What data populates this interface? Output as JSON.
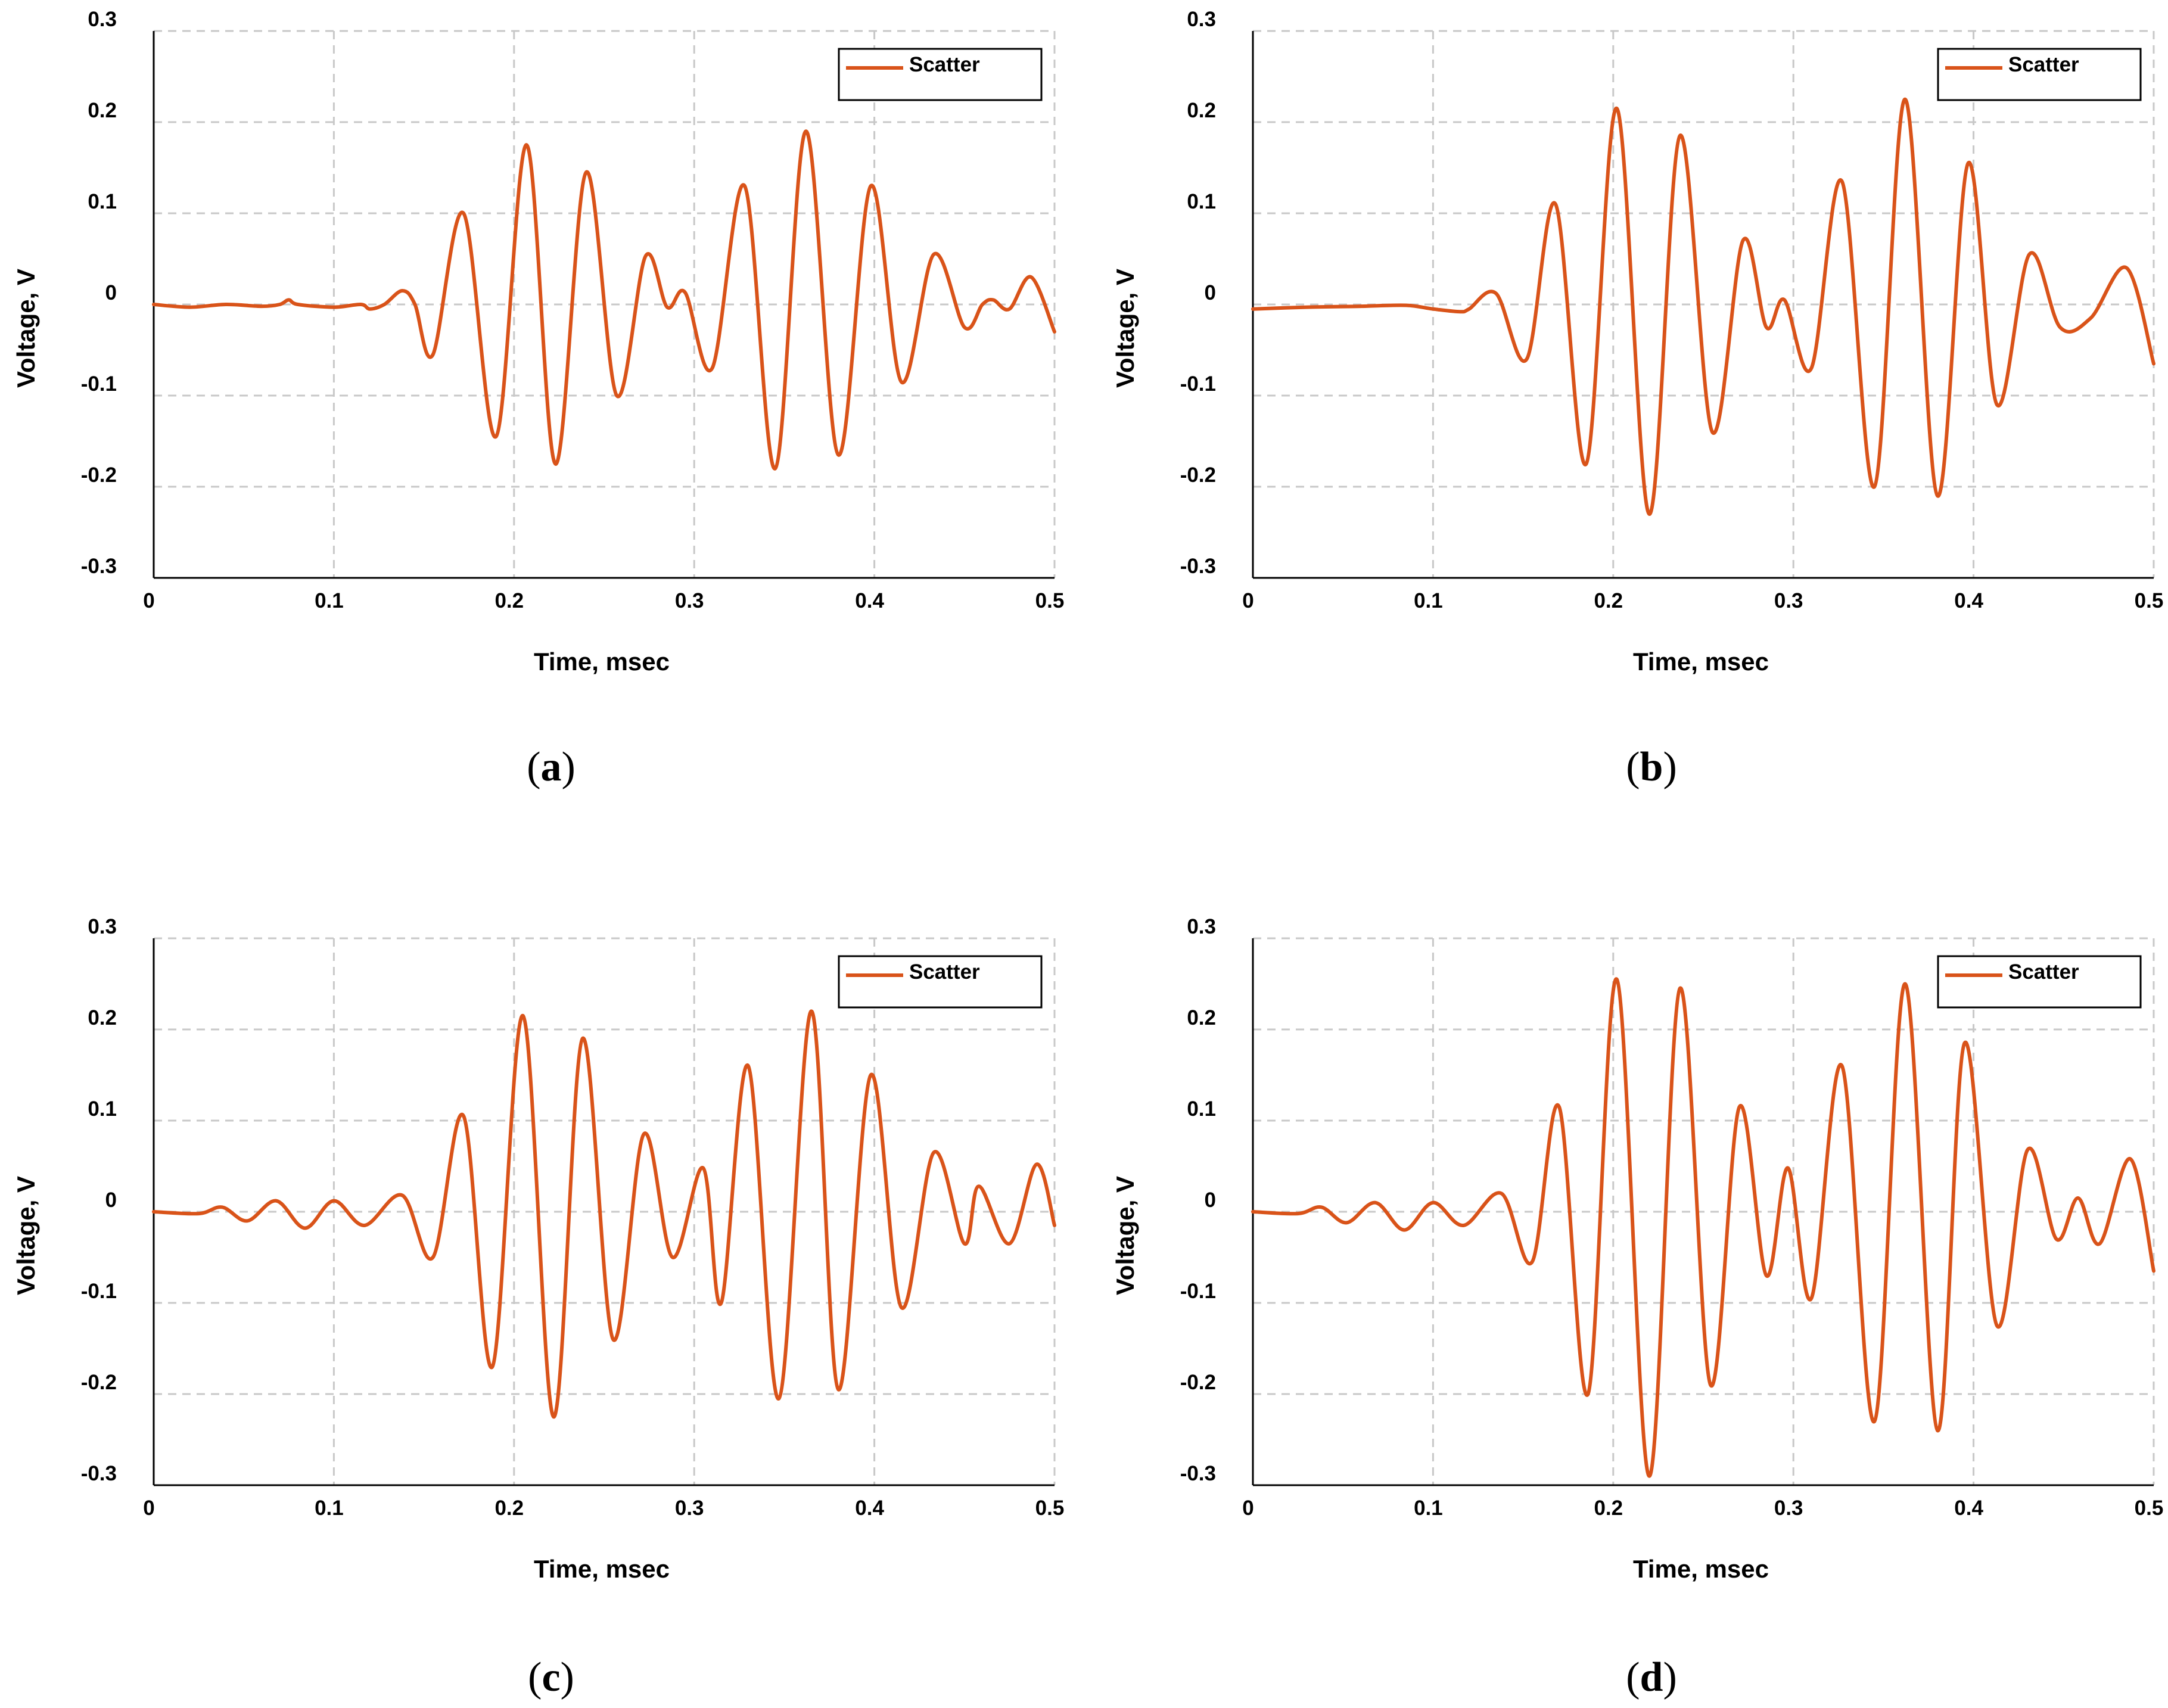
{
  "colors": {
    "series": "#D95319",
    "grid": "#c8c8c8",
    "axis": "#000000"
  },
  "chart_data": [
    {
      "type": "line",
      "panel_label": "a",
      "xlabel": "Time, msec",
      "ylabel": "Voltage, V",
      "xlim": [
        0,
        0.5
      ],
      "ylim": [
        -0.3,
        0.3
      ],
      "xticks": [
        "0",
        "0.1",
        "0.2",
        "0.3",
        "0.4",
        "0.5"
      ],
      "yticks": [
        "0.3",
        "0.2",
        "0.1",
        "0",
        "-0.1",
        "-0.2",
        "-0.3"
      ],
      "grid": true,
      "legend": {
        "position": "top-right",
        "entries": [
          "Scatter"
        ]
      },
      "series": [
        {
          "name": "Scatter",
          "x": [
            0,
            0.02,
            0.04,
            0.06,
            0.07,
            0.075,
            0.08,
            0.1,
            0.115,
            0.12,
            0.128,
            0.138,
            0.145,
            0.155,
            0.172,
            0.19,
            0.207,
            0.223,
            0.24,
            0.257,
            0.273,
            0.285,
            0.295,
            0.31,
            0.328,
            0.345,
            0.362,
            0.38,
            0.398,
            0.415,
            0.433,
            0.45,
            0.46,
            0.466,
            0.475,
            0.487,
            0.5
          ],
          "y": [
            0,
            -0.003,
            0,
            -0.002,
            0,
            0.005,
            0,
            -0.003,
            0,
            -0.005,
            0,
            0.015,
            0,
            -0.055,
            0.1,
            -0.145,
            0.175,
            -0.175,
            0.145,
            -0.1,
            0.053,
            -0.003,
            0.013,
            -0.07,
            0.13,
            -0.18,
            0.19,
            -0.165,
            0.13,
            -0.085,
            0.055,
            -0.025,
            0,
            0.005,
            -0.005,
            0.03,
            -0.03
          ]
        }
      ]
    },
    {
      "type": "line",
      "panel_label": "b",
      "xlabel": "Time, msec",
      "ylabel": "Voltage, V",
      "xlim": [
        0,
        0.5
      ],
      "ylim": [
        -0.3,
        0.3
      ],
      "xticks": [
        "0",
        "0.1",
        "0.2",
        "0.3",
        "0.4",
        "0.5"
      ],
      "yticks": [
        "0.3",
        "0.2",
        "0.1",
        "0",
        "-0.1",
        "-0.2",
        "-0.3"
      ],
      "grid": true,
      "legend": {
        "position": "top-right",
        "entries": [
          "Scatter"
        ]
      },
      "series": [
        {
          "name": "Scatter",
          "x": [
            0,
            0.03,
            0.06,
            0.085,
            0.1,
            0.115,
            0.12,
            0.135,
            0.152,
            0.168,
            0.185,
            0.202,
            0.22,
            0.237,
            0.255,
            0.272,
            0.285,
            0.295,
            0.31,
            0.327,
            0.345,
            0.362,
            0.38,
            0.397,
            0.413,
            0.431,
            0.448,
            0.465,
            0.485,
            0.5
          ],
          "y": [
            -0.005,
            -0.003,
            -0.002,
            -0.001,
            -0.005,
            -0.008,
            -0.005,
            0.012,
            -0.06,
            0.11,
            -0.175,
            0.215,
            -0.23,
            0.185,
            -0.14,
            0.07,
            -0.025,
            0.005,
            -0.07,
            0.135,
            -0.2,
            0.225,
            -0.21,
            0.155,
            -0.11,
            0.055,
            -0.025,
            -0.015,
            0.04,
            -0.065
          ]
        }
      ]
    },
    {
      "type": "line",
      "panel_label": "c",
      "xlabel": "Time, msec",
      "ylabel": "Voltage, V",
      "xlim": [
        0,
        0.5
      ],
      "ylim": [
        -0.3,
        0.3
      ],
      "xticks": [
        "0",
        "0.1",
        "0.2",
        "0.3",
        "0.4",
        "0.5"
      ],
      "yticks": [
        "0.3",
        "0.2",
        "0.1",
        "0",
        "-0.1",
        "-0.2",
        "-0.3"
      ],
      "grid": true,
      "legend": {
        "position": "top-right",
        "entries": [
          "Scatter"
        ]
      },
      "series": [
        {
          "name": "Scatter",
          "x": [
            0,
            0.025,
            0.038,
            0.052,
            0.068,
            0.084,
            0.1,
            0.117,
            0.138,
            0.155,
            0.172,
            0.188,
            0.205,
            0.222,
            0.238,
            0.255,
            0.272,
            0.288,
            0.305,
            0.315,
            0.33,
            0.347,
            0.365,
            0.38,
            0.398,
            0.415,
            0.433,
            0.45,
            0.458,
            0.475,
            0.49,
            0.5
          ],
          "y": [
            0,
            -0.002,
            0.005,
            -0.01,
            0.012,
            -0.018,
            0.012,
            -0.015,
            0.018,
            -0.05,
            0.105,
            -0.17,
            0.215,
            -0.225,
            0.19,
            -0.14,
            0.085,
            -0.05,
            0.048,
            -0.1,
            0.16,
            -0.205,
            0.22,
            -0.195,
            0.15,
            -0.105,
            0.065,
            -0.035,
            0.028,
            -0.035,
            0.052,
            -0.015
          ]
        }
      ]
    },
    {
      "type": "line",
      "panel_label": "d",
      "xlabel": "Time, msec",
      "ylabel": "Voltage, V",
      "xlim": [
        0,
        0.5
      ],
      "ylim": [
        -0.3,
        0.3
      ],
      "xticks": [
        "0",
        "0.1",
        "0.2",
        "0.3",
        "0.4",
        "0.5"
      ],
      "yticks": [
        "0.3",
        "0.2",
        "0.1",
        "0",
        "-0.1",
        "-0.2",
        "-0.3"
      ],
      "grid": true,
      "legend": {
        "position": "top-right",
        "entries": [
          "Scatter"
        ]
      },
      "series": [
        {
          "name": "Scatter",
          "x": [
            0,
            0.025,
            0.038,
            0.052,
            0.068,
            0.084,
            0.1,
            0.117,
            0.138,
            0.155,
            0.17,
            0.186,
            0.202,
            0.22,
            0.237,
            0.254,
            0.27,
            0.285,
            0.297,
            0.31,
            0.327,
            0.345,
            0.362,
            0.38,
            0.395,
            0.413,
            0.43,
            0.446,
            0.458,
            0.47,
            0.487,
            0.5
          ],
          "y": [
            0,
            -0.002,
            0.005,
            -0.012,
            0.01,
            -0.02,
            0.01,
            -0.015,
            0.02,
            -0.055,
            0.115,
            -0.2,
            0.255,
            -0.29,
            0.245,
            -0.19,
            0.115,
            -0.07,
            0.048,
            -0.095,
            0.16,
            -0.23,
            0.25,
            -0.24,
            0.185,
            -0.125,
            0.068,
            -0.03,
            0.015,
            -0.035,
            0.058,
            -0.065
          ]
        }
      ]
    }
  ]
}
